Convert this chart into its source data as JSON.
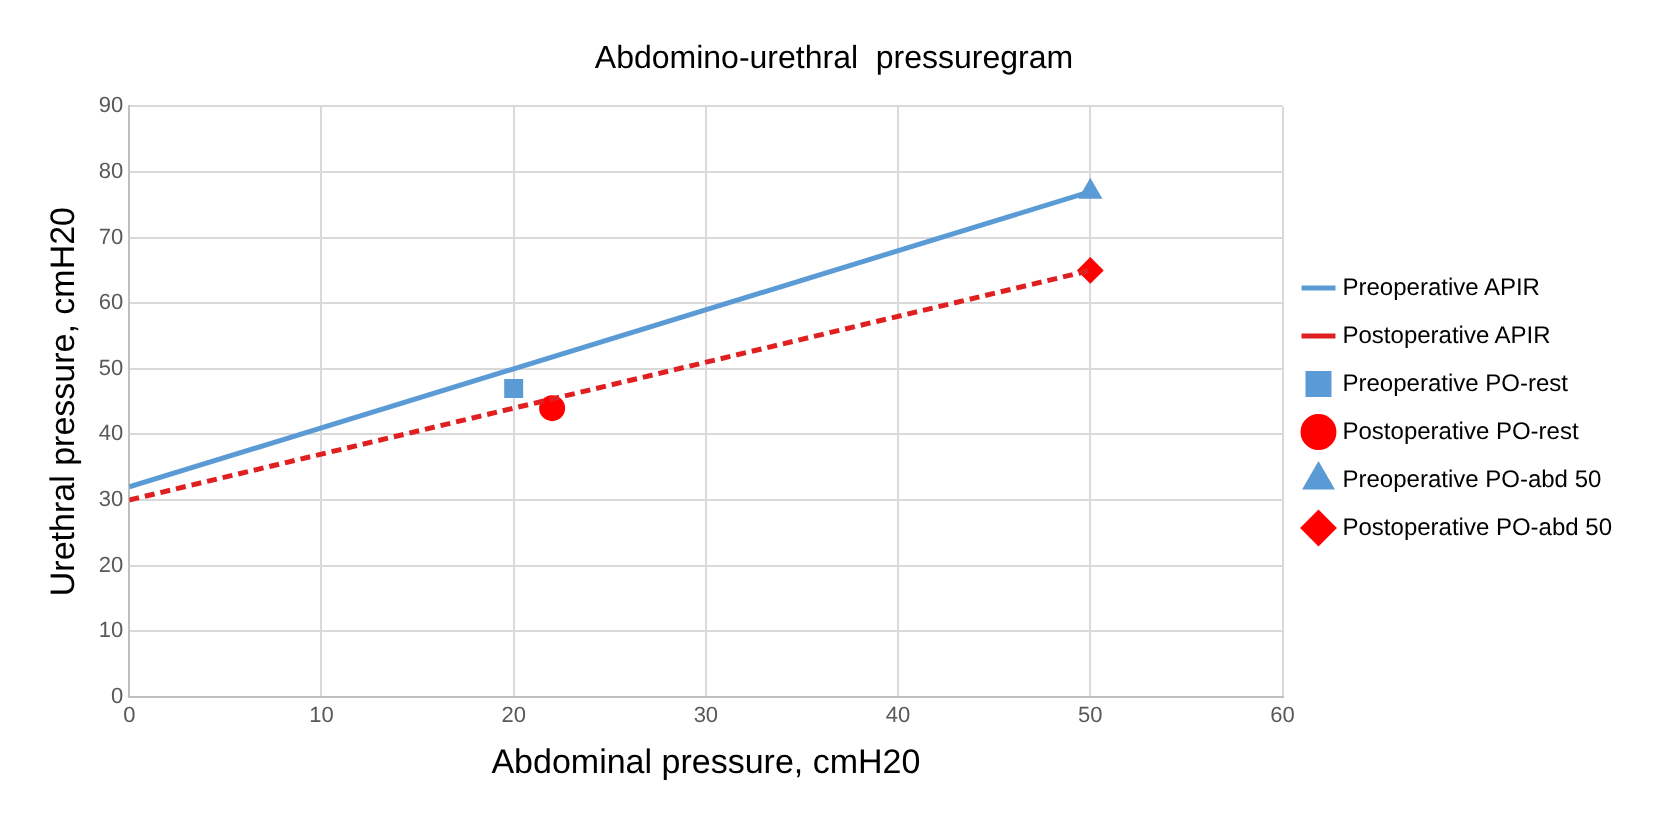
{
  "chart_data": {
    "type": "line",
    "title": "Abdomino-urethral  pressuregram",
    "xlabel": "Abdominal pressure, cmH20",
    "ylabel": "Urethral pressure, cmH20",
    "xlim": [
      0,
      60
    ],
    "xticks": [
      0,
      10,
      20,
      30,
      40,
      50,
      60
    ],
    "ylim": [
      0,
      90
    ],
    "yticks": [
      0,
      10,
      20,
      30,
      40,
      50,
      60,
      70,
      80,
      90
    ],
    "grid": true,
    "legend": "right",
    "series": [
      {
        "name": "Preoperative APIR",
        "color": "#5b9bd5",
        "x": [
          0,
          50
        ],
        "values": [
          32,
          77
        ],
        "marker": "none",
        "line_style": "solid"
      },
      {
        "name": "Postoperative APIR",
        "color": "#e02020",
        "x": [
          0,
          50
        ],
        "values": [
          30,
          65
        ],
        "marker": "none",
        "line_style": "dashed"
      },
      {
        "name": "Preoperative PO-rest",
        "type": "scatter",
        "color": "#5b9bd5",
        "x": [
          20
        ],
        "values": [
          47
        ],
        "marker": "square"
      },
      {
        "name": "Postoperative PO-rest",
        "type": "scatter",
        "color": "#ff0000",
        "x": [
          22
        ],
        "values": [
          44
        ],
        "marker": "circle"
      },
      {
        "name": "Preoperative PO-abd 50",
        "type": "scatter",
        "color": "#5b9bd5",
        "x": [
          50
        ],
        "values": [
          77
        ],
        "marker": "triangle"
      },
      {
        "name": "Postoperative PO-abd 50",
        "type": "scatter",
        "color": "#ff0000",
        "x": [
          50
        ],
        "values": [
          65
        ],
        "marker": "diamond"
      }
    ]
  }
}
